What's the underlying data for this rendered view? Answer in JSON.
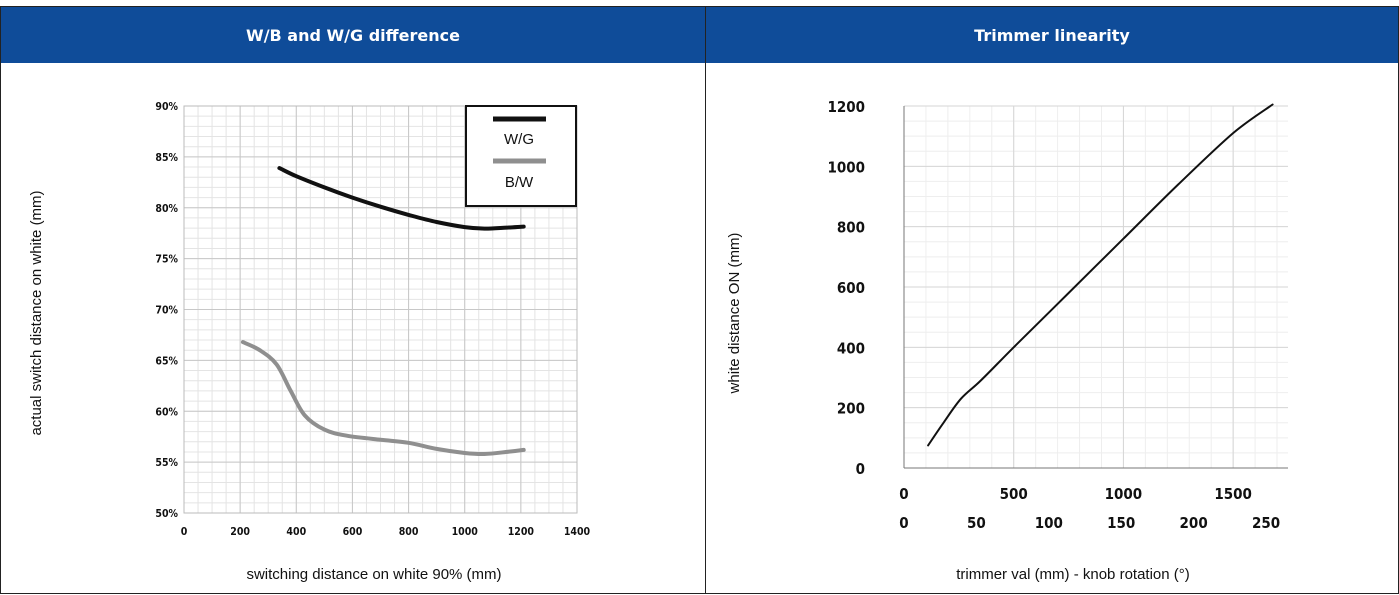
{
  "chart_data": [
    {
      "type": "line",
      "title": "W/B and W/G difference",
      "xlabel": "switching distance on white 90% (mm)",
      "ylabel": "actual switch distance on white (mm)",
      "xlim": [
        0,
        1400
      ],
      "ylim": [
        50,
        90
      ],
      "x_ticks": [
        "0",
        "200",
        "400",
        "600",
        "800",
        "1000",
        "1200",
        "1400"
      ],
      "y_ticks": [
        "50%",
        "55%",
        "60%",
        "65%",
        "70%",
        "75%",
        "80%",
        "85%",
        "90%"
      ],
      "grid": true,
      "legend_position": "top-right",
      "series": [
        {
          "name": "W/G",
          "color": "#111111",
          "points": [
            [
              340,
              83.9
            ],
            [
              400,
              83.1
            ],
            [
              500,
              82.0
            ],
            [
              600,
              81.0
            ],
            [
              700,
              80.1
            ],
            [
              800,
              79.3
            ],
            [
              900,
              78.6
            ],
            [
              1000,
              78.1
            ],
            [
              1070,
              77.95
            ],
            [
              1150,
              78.05
            ],
            [
              1210,
              78.15
            ]
          ]
        },
        {
          "name": "B/W",
          "color": "#8f8f8f",
          "points": [
            [
              210,
              66.8
            ],
            [
              270,
              66.0
            ],
            [
              330,
              64.6
            ],
            [
              380,
              62.0
            ],
            [
              430,
              59.6
            ],
            [
              500,
              58.2
            ],
            [
              580,
              57.6
            ],
            [
              700,
              57.2
            ],
            [
              800,
              56.9
            ],
            [
              900,
              56.3
            ],
            [
              1000,
              55.9
            ],
            [
              1070,
              55.8
            ],
            [
              1150,
              56.0
            ],
            [
              1210,
              56.2
            ]
          ]
        }
      ]
    },
    {
      "type": "line",
      "title": "Trimmer linearity",
      "xlabel": "trimmer val (mm) - knob rotation (°)",
      "ylabel": "white distance ON (mm)",
      "xlim": [
        0,
        1750
      ],
      "ylim": [
        0,
        1200
      ],
      "x_ticks_primary": [
        "0",
        "500",
        "1000",
        "1500"
      ],
      "x_ticks_secondary": [
        "0",
        "50",
        "100",
        "150",
        "200",
        "250"
      ],
      "y_ticks": [
        "0",
        "200",
        "400",
        "600",
        "800",
        "1000",
        "1200"
      ],
      "grid": true,
      "series": [
        {
          "color": "#111111",
          "points": [
            [
              110,
              75
            ],
            [
              180,
              150
            ],
            [
              260,
              230
            ],
            [
              350,
              290
            ],
            [
              500,
              400
            ],
            [
              750,
              580
            ],
            [
              1000,
              760
            ],
            [
              1250,
              940
            ],
            [
              1500,
              1110
            ],
            [
              1680,
              1205
            ]
          ]
        }
      ]
    }
  ]
}
